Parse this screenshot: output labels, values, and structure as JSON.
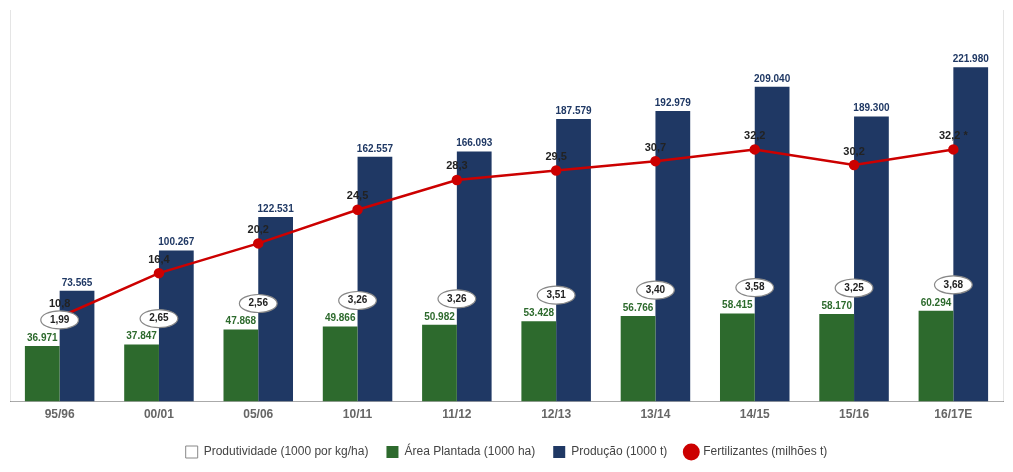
{
  "chart_data": {
    "type": "bar",
    "categories": [
      "95/96",
      "00/01",
      "05/06",
      "10/11",
      "11/12",
      "12/13",
      "13/14",
      "14/15",
      "15/16",
      "16/17E"
    ],
    "series": [
      {
        "name": "Produtividade (1000 por kg/ha)",
        "type": "ellipse",
        "color": "#ffffff",
        "values": [
          1.99,
          2.65,
          2.56,
          3.26,
          3.26,
          3.51,
          3.4,
          3.58,
          3.25,
          3.68
        ],
        "value_labels": [
          "1,99",
          "2,65",
          "2,56",
          "3,26",
          "3,26",
          "3,51",
          "3,40",
          "3,58",
          "3,25",
          "3,68"
        ]
      },
      {
        "name": "Área Plantada (1000 ha)",
        "type": "bar",
        "color": "#2d6a2d",
        "values": [
          36971,
          37847,
          47868,
          49866,
          50982,
          53428,
          56766,
          58415,
          58170,
          60294
        ],
        "value_labels": [
          "36.971",
          "37.847",
          "47.868",
          "49.866",
          "50.982",
          "53.428",
          "56.766",
          "58.415",
          "58.170",
          "60.294"
        ]
      },
      {
        "name": "Produção (1000 t)",
        "type": "bar",
        "color": "#1f3864",
        "values": [
          73565,
          100267,
          122531,
          162557,
          166093,
          187579,
          192979,
          209040,
          189300,
          221980
        ],
        "value_labels": [
          "73.565",
          "100.267",
          "122.531",
          "162.557",
          "166.093",
          "187.579",
          "192.979",
          "209.040",
          "189.300",
          "221.980"
        ]
      },
      {
        "name": "Fertilizantes (milhões t)",
        "type": "line",
        "axis": "y2",
        "color": "#cc0000",
        "marker": "o",
        "values": [
          10.8,
          16.4,
          20.2,
          24.5,
          28.3,
          29.5,
          30.7,
          32.2,
          30.2,
          32.2
        ],
        "value_labels": [
          "10,8",
          "16,4",
          "20,2",
          "24,5",
          "28,3",
          "29,5",
          "30,7",
          "32,2",
          "30,2",
          "32,2 *"
        ]
      }
    ],
    "ylim": [
      0,
      260000
    ],
    "y2lim": [
      0,
      50
    ],
    "grid": false,
    "legend": "bottom",
    "data_labels": true,
    "tick_labels": "x"
  }
}
